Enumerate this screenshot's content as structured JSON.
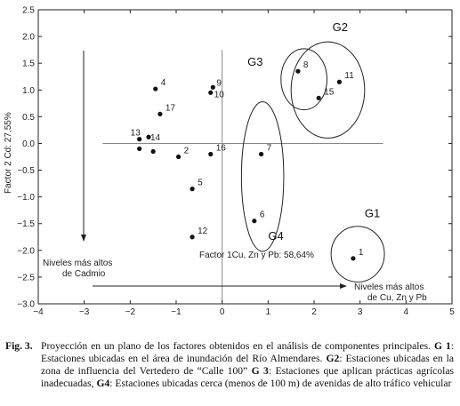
{
  "chart_data": {
    "type": "scatter",
    "xlabel": "Factor 1Cu, Zn y Pb: 58,64%",
    "ylabel": "Factor 2 Cd: 27,55%",
    "xlim": [
      -4,
      5
    ],
    "ylim": [
      -3,
      2.5
    ],
    "x_ticks": [
      -4,
      -3,
      -2,
      -1,
      0,
      1,
      2,
      3,
      4,
      5
    ],
    "y_ticks": [
      2.5,
      2.0,
      1.5,
      1.0,
      0.5,
      0.0,
      -0.5,
      -1.0,
      -1.5,
      -2.0,
      -2.5,
      -3.0
    ],
    "x_tick_labels": [
      "−4",
      "−3",
      "−2",
      "−1",
      "0",
      "1",
      "2",
      "3",
      "4",
      "5"
    ],
    "y_tick_labels": [
      "2.5",
      "2.0",
      "1.5",
      "1.0",
      "0.5",
      "0.0",
      "−0.5",
      "−1.0",
      "−1.5",
      "−2.0",
      "−2.5",
      "−3.0"
    ],
    "grid": false,
    "points": [
      {
        "label": "1",
        "x": 2.85,
        "y": -2.15
      },
      {
        "label": "2",
        "x": -0.95,
        "y": -0.25
      },
      {
        "label": "4",
        "x": -1.45,
        "y": 1.02
      },
      {
        "label": "5",
        "x": -0.65,
        "y": -0.85
      },
      {
        "label": "6",
        "x": 0.7,
        "y": -1.45
      },
      {
        "label": "7",
        "x": 0.85,
        "y": -0.2
      },
      {
        "label": "8",
        "x": 1.65,
        "y": 1.35
      },
      {
        "label": "9",
        "x": -0.2,
        "y": 1.05
      },
      {
        "label": "10",
        "x": -0.25,
        "y": 0.95
      },
      {
        "label": "11",
        "x": 2.55,
        "y": 1.15
      },
      {
        "label": "12",
        "x": -0.65,
        "y": -1.75
      },
      {
        "label": "13",
        "x": -1.8,
        "y": 0.08
      },
      {
        "label": "14",
        "x": -1.6,
        "y": 0.12
      },
      {
        "label": "15",
        "x": 2.1,
        "y": 0.85
      },
      {
        "label": "16",
        "x": -0.25,
        "y": -0.2
      },
      {
        "label": "17",
        "x": -1.35,
        "y": 0.55
      },
      {
        "label": "",
        "x": -1.8,
        "y": -0.1
      },
      {
        "label": "",
        "x": -1.5,
        "y": -0.15
      }
    ],
    "groups": [
      {
        "name": "G1",
        "cx": 2.95,
        "cy": -2.07,
        "rx": 0.58,
        "ry": 0.52
      },
      {
        "name": "G2",
        "cx": 2.3,
        "cy": 1.0,
        "rx": 0.8,
        "ry": 0.9
      },
      {
        "name": "G3",
        "cx": 1.78,
        "cy": 1.2,
        "rx": 0.5,
        "ry": 0.57
      },
      {
        "name": "G4",
        "cx": 0.88,
        "cy": -0.62,
        "rx": 0.46,
        "ry": 1.4
      }
    ],
    "annotations": {
      "cadmio_label_1": "Niveles más altos",
      "cadmio_label_2": "de Cadmio",
      "cuznpb_label_1": "Niveles más altos",
      "cuznpb_label_2": "de Cu, Zn y Pb"
    }
  },
  "caption": {
    "label": "Fig. 3.",
    "intro": "Proyección en un plano de los factores obtenidos en el análisis de componentes principales.",
    "g1_tag": "G 1",
    "g1_text": ": Estaciones ubicadas en el área de inundación del Río Almendares.",
    "g2_tag": "G2",
    "g2_text": ": Estaciones ubicadas en la zona de influencia del Vertedero de “Calle 100”",
    "g3_tag": "G 3",
    "g3_text": ": Estaciones que aplican prácticas agrícolas inadecuadas,",
    "g4_tag": "G4",
    "g4_text": ": Estaciones ubicadas cerca (menos de 100 m) de avenidas de alto tráfico vehicular"
  }
}
